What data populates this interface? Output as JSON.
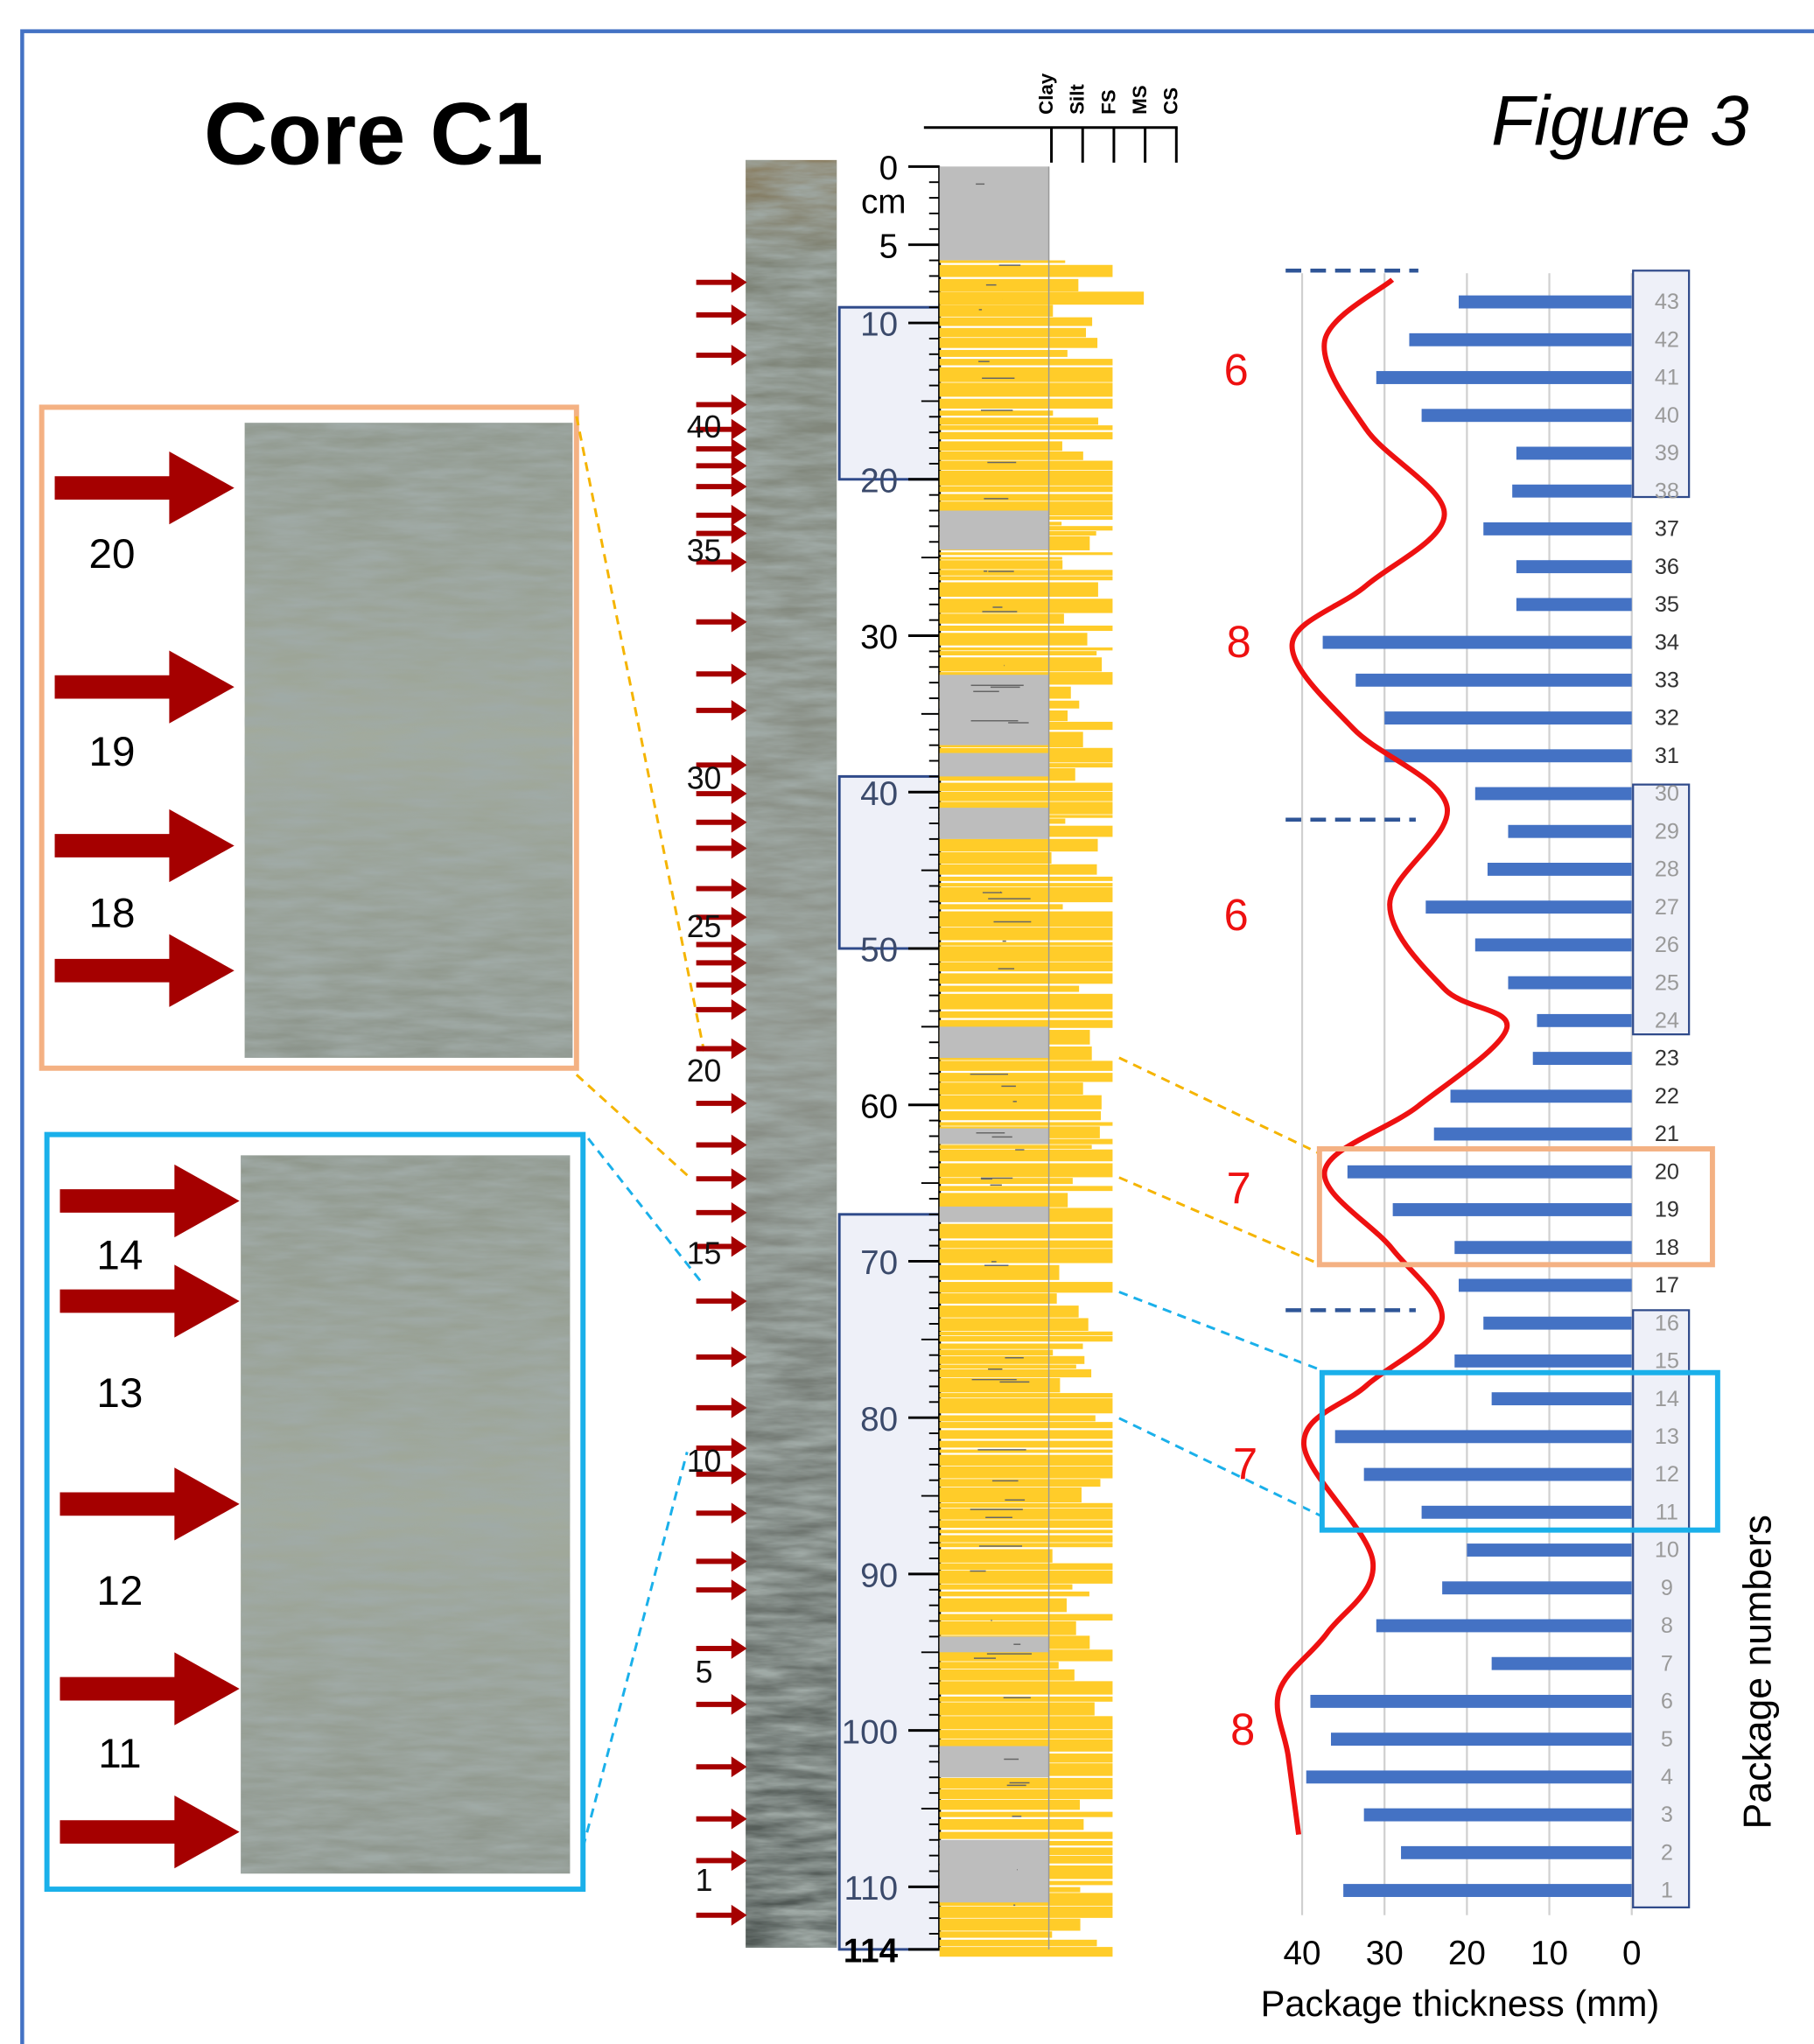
{
  "title": "Core C1",
  "figure_label": "Figure 3",
  "grain_size_labels": [
    "Clay",
    "Silt",
    "FS",
    "MS",
    "CS"
  ],
  "depth_log": {
    "unit": "cm",
    "ticks": [
      0,
      5,
      10,
      20,
      30,
      40,
      50,
      60,
      70,
      80,
      90,
      100,
      110,
      114
    ]
  },
  "core_package_labels": [
    40,
    35,
    30,
    25,
    20,
    15,
    10,
    5,
    1
  ],
  "upper_zoom_labels": [
    "20",
    "19",
    "18"
  ],
  "lower_zoom_labels": [
    "14",
    "13",
    "12",
    "11"
  ],
  "chart_data": {
    "type": "bar",
    "orientation": "horizontal",
    "x_reversed": true,
    "xlabel": "Package thickness (mm)",
    "ylabel": "Package numbers",
    "categories": [
      "1",
      "2",
      "3",
      "4",
      "5",
      "6",
      "7",
      "8",
      "9",
      "10",
      "11",
      "12",
      "13",
      "14",
      "15",
      "16",
      "17",
      "18",
      "19",
      "20",
      "21",
      "22",
      "23",
      "24",
      "25",
      "26",
      "27",
      "28",
      "29",
      "30",
      "31",
      "32",
      "33",
      "34",
      "35",
      "36",
      "37",
      "38",
      "39",
      "40",
      "41",
      "42",
      "43"
    ],
    "values": [
      35,
      28,
      32.5,
      39.5,
      36.5,
      39,
      17,
      31,
      23,
      20,
      25.5,
      32.5,
      36,
      17,
      21.5,
      18,
      21,
      21.5,
      29,
      34.5,
      24,
      22,
      12,
      11.5,
      15,
      19,
      25,
      17.5,
      15,
      19,
      30,
      30,
      33.5,
      37.5,
      14,
      14,
      18,
      14.5,
      14,
      25.5,
      31,
      27,
      21
    ],
    "color": "#4472c4",
    "xlim": [
      0,
      45
    ],
    "xticks": [
      0,
      10,
      20,
      30,
      40
    ],
    "grid": true,
    "cycle_labels": [
      "6",
      "8",
      "6",
      "7",
      "7",
      "8"
    ]
  }
}
